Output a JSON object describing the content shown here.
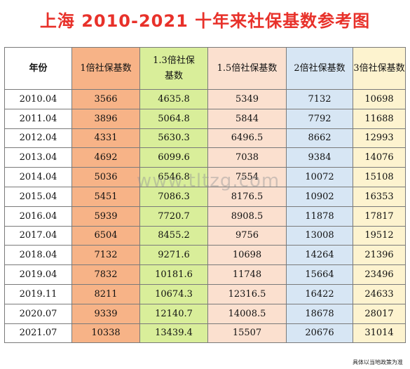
{
  "title": "上海 2010-2021 十年来社保基数参考图",
  "watermark": "www.tltzg.com",
  "footnote": "具体以当地政策为准",
  "headers": [
    "年份",
    "1倍社保基数",
    "1.3倍社保基数",
    "1.5倍社保基数",
    "2倍社保基数",
    "3倍社保基数"
  ],
  "rows": [
    [
      "2010.04",
      "3566",
      "4635.8",
      "5349",
      "7132",
      "10698"
    ],
    [
      "2011.04",
      "3896",
      "5064.8",
      "5844",
      "7792",
      "11688"
    ],
    [
      "2012.04",
      "4331",
      "5630.3",
      "6496.5",
      "8662",
      "12993"
    ],
    [
      "2013.04",
      "4692",
      "6099.6",
      "7038",
      "9384",
      "14076"
    ],
    [
      "2014.04",
      "5036",
      "6546.8",
      "7554",
      "10072",
      "15108"
    ],
    [
      "2015.04",
      "5451",
      "7086.3",
      "8176.5",
      "10902",
      "16353"
    ],
    [
      "2016.04",
      "5939",
      "7720.7",
      "8908.5",
      "11878",
      "17817"
    ],
    [
      "2017.04",
      "6504",
      "8455.2",
      "9756",
      "13008",
      "19512"
    ],
    [
      "2018.04",
      "7132",
      "9271.6",
      "10698",
      "14264",
      "21396"
    ],
    [
      "2019.04",
      "7832",
      "10181.6",
      "11748",
      "15664",
      "23496"
    ],
    [
      "2019.11",
      "8211",
      "10674.3",
      "12316.5",
      "16422",
      "24633"
    ],
    [
      "2020.07",
      "9339",
      "12140.7",
      "14008.5",
      "18678",
      "28017"
    ],
    [
      "2021.07",
      "10338",
      "13439.4",
      "15507",
      "20676",
      "31014"
    ]
  ]
}
